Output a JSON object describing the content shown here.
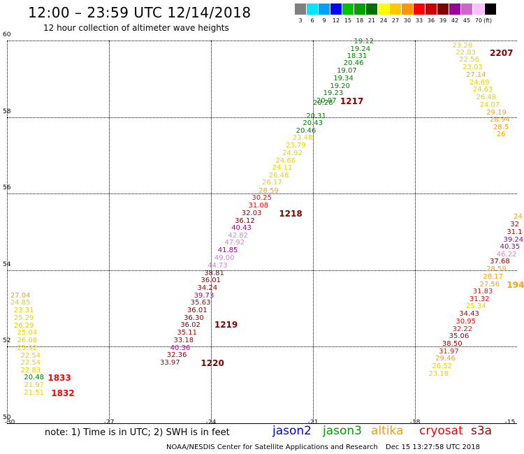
{
  "header": {
    "title": "12:00 – 23:59 UTC 12/14/2018",
    "subtitle": "12 hour collection of altimeter wave heights"
  },
  "color_scale": {
    "unit": "(ft)",
    "bins": [
      {
        "label": "3",
        "color": "#808080"
      },
      {
        "label": "6",
        "color": "#00e5ff"
      },
      {
        "label": "9",
        "color": "#00a0ff"
      },
      {
        "label": "12",
        "color": "#0000ff"
      },
      {
        "label": "15",
        "color": "#00c000"
      },
      {
        "label": "18",
        "color": "#00a000"
      },
      {
        "label": "21",
        "color": "#007000"
      },
      {
        "label": "24",
        "color": "#ffff00"
      },
      {
        "label": "27",
        "color": "#ffc800"
      },
      {
        "label": "30",
        "color": "#ff9600"
      },
      {
        "label": "33",
        "color": "#ff0000"
      },
      {
        "label": "36",
        "color": "#c80000"
      },
      {
        "label": "39",
        "color": "#800000"
      },
      {
        "label": "42",
        "color": "#990099"
      },
      {
        "label": "45",
        "color": "#cc66cc"
      },
      {
        "label": "70",
        "color": "#ffc0ff"
      },
      {
        "label": "",
        "color": "#000000"
      }
    ]
  },
  "map": {
    "lon_ticks": [
      "-30",
      "-27",
      "-24",
      "-21",
      "-18",
      "-15"
    ],
    "lat_ticks": [
      "50",
      "52",
      "54",
      "56",
      "58",
      "60"
    ],
    "lon_range": [
      -30,
      -15
    ],
    "lat_range": [
      50,
      60
    ]
  },
  "colors": {
    "green": "#008000",
    "yellow": "#e6d200",
    "orange": "#ffa000",
    "red": "#ff0000",
    "darkred": "#990000",
    "maroon": "#800000",
    "purple": "#990099",
    "lavender": "#cc88cc",
    "time": "#800000",
    "time_red": "#ff0000"
  },
  "tracks": [
    {
      "name": "track-1217-1220",
      "points": [
        {
          "v": "19.12",
          "lon": -19.8,
          "lat": 59.96,
          "c": "green"
        },
        {
          "v": "19.24",
          "lon": -19.9,
          "lat": 59.77,
          "c": "green"
        },
        {
          "v": "18.31",
          "lon": -20.0,
          "lat": 59.58,
          "c": "green"
        },
        {
          "v": "20.46",
          "lon": -20.1,
          "lat": 59.39,
          "c": "green"
        },
        {
          "v": "19.07",
          "lon": -20.3,
          "lat": 59.19,
          "c": "green"
        },
        {
          "v": "19.34",
          "lon": -20.4,
          "lat": 58.99,
          "c": "green"
        },
        {
          "v": "19.20",
          "lon": -20.5,
          "lat": 58.8,
          "c": "green"
        },
        {
          "v": "19.23",
          "lon": -20.7,
          "lat": 58.61,
          "c": "green"
        },
        {
          "v": "20.07",
          "lon": -20.9,
          "lat": 58.41,
          "c": "green"
        },
        {
          "v": "20.28",
          "lon": -21.0,
          "lat": 58.35,
          "c": "green"
        },
        {
          "v": "20.31",
          "lon": -21.2,
          "lat": 58.02,
          "c": "green"
        },
        {
          "v": "20.43",
          "lon": -21.3,
          "lat": 57.83,
          "c": "green"
        },
        {
          "v": "20.46",
          "lon": -21.5,
          "lat": 57.63,
          "c": "green"
        },
        {
          "v": "23.48",
          "lon": -21.6,
          "lat": 57.44,
          "c": "yellow"
        },
        {
          "v": "23.79",
          "lon": -21.8,
          "lat": 57.24,
          "c": "yellow"
        },
        {
          "v": "24.92",
          "lon": -21.9,
          "lat": 57.05,
          "c": "yellow"
        },
        {
          "v": "24.66",
          "lon": -22.1,
          "lat": 56.85,
          "c": "yellow"
        },
        {
          "v": "24.11",
          "lon": -22.2,
          "lat": 56.66,
          "c": "yellow"
        },
        {
          "v": "26.48",
          "lon": -22.3,
          "lat": 56.46,
          "c": "yellow"
        },
        {
          "v": "26.17",
          "lon": -22.5,
          "lat": 56.27,
          "c": "yellow"
        },
        {
          "v": "28.59",
          "lon": -22.6,
          "lat": 56.06,
          "c": "orange"
        },
        {
          "v": "30.25",
          "lon": -22.8,
          "lat": 55.87,
          "c": "red"
        },
        {
          "v": "31.08",
          "lon": -22.9,
          "lat": 55.67,
          "c": "red"
        },
        {
          "v": "32.03",
          "lon": -23.1,
          "lat": 55.48,
          "c": "darkred"
        },
        {
          "v": "36.12",
          "lon": -23.3,
          "lat": 55.28,
          "c": "maroon"
        },
        {
          "v": "40.43",
          "lon": -23.4,
          "lat": 55.09,
          "c": "purple"
        },
        {
          "v": "42.82",
          "lon": -23.5,
          "lat": 54.89,
          "c": "lavender"
        },
        {
          "v": "47.92",
          "lon": -23.6,
          "lat": 54.7,
          "c": "lavender"
        },
        {
          "v": "41.85",
          "lon": -23.8,
          "lat": 54.5,
          "c": "purple"
        },
        {
          "v": "49.00",
          "lon": -23.9,
          "lat": 54.31,
          "c": "lavender"
        },
        {
          "v": "44.73",
          "lon": -24.1,
          "lat": 54.11,
          "c": "lavender"
        },
        {
          "v": "38.81",
          "lon": -24.2,
          "lat": 53.91,
          "c": "maroon"
        },
        {
          "v": "36.01",
          "lon": -24.3,
          "lat": 53.72,
          "c": "maroon"
        },
        {
          "v": "34.24",
          "lon": -24.4,
          "lat": 53.52,
          "c": "darkred"
        },
        {
          "v": "39.73",
          "lon": -24.5,
          "lat": 53.33,
          "c": "purple"
        },
        {
          "v": "35.63",
          "lon": -24.6,
          "lat": 53.13,
          "c": "darkred"
        },
        {
          "v": "36.01",
          "lon": -24.7,
          "lat": 52.94,
          "c": "maroon"
        },
        {
          "v": "36.30",
          "lon": -24.8,
          "lat": 52.74,
          "c": "maroon"
        },
        {
          "v": "36.02",
          "lon": -24.9,
          "lat": 52.55,
          "c": "maroon"
        },
        {
          "v": "35.11",
          "lon": -25.0,
          "lat": 52.35,
          "c": "darkred"
        },
        {
          "v": "33.18",
          "lon": -25.1,
          "lat": 52.16,
          "c": "darkred"
        },
        {
          "v": "40.36",
          "lon": -25.2,
          "lat": 51.96,
          "c": "purple"
        },
        {
          "v": "32.36",
          "lon": -25.3,
          "lat": 51.77,
          "c": "darkred"
        },
        {
          "v": "33.97",
          "lon": -25.5,
          "lat": 51.57,
          "c": "darkred"
        }
      ],
      "times": [
        {
          "t": "1217",
          "lon": -20.2,
          "lat": 58.42,
          "c": "time"
        },
        {
          "t": "1218",
          "lon": -22.0,
          "lat": 55.47,
          "c": "time"
        },
        {
          "t": "1219",
          "lon": -23.9,
          "lat": 52.58,
          "c": "time"
        },
        {
          "t": "1220",
          "lon": -24.3,
          "lat": 51.57,
          "c": "time"
        }
      ]
    },
    {
      "name": "track-2207",
      "points": [
        {
          "v": "23.28",
          "lon": -16.9,
          "lat": 59.86,
          "c": "yellow"
        },
        {
          "v": "22.83",
          "lon": -16.8,
          "lat": 59.67,
          "c": "yellow"
        },
        {
          "v": "22.56",
          "lon": -16.7,
          "lat": 59.48,
          "c": "yellow"
        },
        {
          "v": "23.03",
          "lon": -16.6,
          "lat": 59.28,
          "c": "yellow"
        },
        {
          "v": "27.14",
          "lon": -16.5,
          "lat": 59.08,
          "c": "orange"
        },
        {
          "v": "24.69",
          "lon": -16.4,
          "lat": 58.89,
          "c": "yellow"
        },
        {
          "v": "24.63",
          "lon": -16.3,
          "lat": 58.7,
          "c": "yellow"
        },
        {
          "v": "26.48",
          "lon": -16.2,
          "lat": 58.5,
          "c": "yellow"
        },
        {
          "v": "24.07",
          "lon": -16.1,
          "lat": 58.3,
          "c": "yellow"
        },
        {
          "v": "29.19",
          "lon": -15.9,
          "lat": 58.11,
          "c": "orange"
        },
        {
          "v": "28.94",
          "lon": -15.8,
          "lat": 57.92,
          "c": "orange"
        },
        {
          "v": "28.5",
          "lon": -15.7,
          "lat": 57.72,
          "c": "orange"
        },
        {
          "v": "26",
          "lon": -15.6,
          "lat": 57.53,
          "c": "orange"
        }
      ],
      "times": [
        {
          "t": "2207",
          "lon": -15.8,
          "lat": 59.67,
          "c": "time"
        }
      ]
    },
    {
      "name": "track-1940",
      "points": [
        {
          "v": "24",
          "lon": -15.1,
          "lat": 55.38,
          "c": "orange"
        },
        {
          "v": "32",
          "lon": -15.2,
          "lat": 55.18,
          "c": "darkred"
        },
        {
          "v": "31.1",
          "lon": -15.3,
          "lat": 54.99,
          "c": "darkred"
        },
        {
          "v": "39.24",
          "lon": -15.4,
          "lat": 54.79,
          "c": "purple"
        },
        {
          "v": "40.35",
          "lon": -15.5,
          "lat": 54.6,
          "c": "purple"
        },
        {
          "v": "46.22",
          "lon": -15.6,
          "lat": 54.4,
          "c": "lavender"
        },
        {
          "v": "37.68",
          "lon": -15.8,
          "lat": 54.21,
          "c": "maroon"
        },
        {
          "v": "28.59",
          "lon": -15.9,
          "lat": 54.01,
          "c": "orange"
        },
        {
          "v": "28.17",
          "lon": -16.0,
          "lat": 53.82,
          "c": "orange"
        },
        {
          "v": "27.56",
          "lon": -16.1,
          "lat": 53.62,
          "c": "orange"
        },
        {
          "v": "31.83",
          "lon": -16.3,
          "lat": 53.43,
          "c": "red"
        },
        {
          "v": "31.32",
          "lon": -16.4,
          "lat": 53.23,
          "c": "red"
        },
        {
          "v": "25.34",
          "lon": -16.5,
          "lat": 53.04,
          "c": "yellow"
        },
        {
          "v": "34.43",
          "lon": -16.7,
          "lat": 52.84,
          "c": "darkred"
        },
        {
          "v": "30.95",
          "lon": -16.8,
          "lat": 52.65,
          "c": "red"
        },
        {
          "v": "32.22",
          "lon": -16.9,
          "lat": 52.45,
          "c": "red"
        },
        {
          "v": "35.06",
          "lon": -17.0,
          "lat": 52.26,
          "c": "darkred"
        },
        {
          "v": "38.50",
          "lon": -17.2,
          "lat": 52.06,
          "c": "maroon"
        },
        {
          "v": "31.97",
          "lon": -17.3,
          "lat": 51.86,
          "c": "red"
        },
        {
          "v": "29.46",
          "lon": -17.4,
          "lat": 51.67,
          "c": "orange"
        },
        {
          "v": "26.52",
          "lon": -17.5,
          "lat": 51.47,
          "c": "yellow"
        },
        {
          "v": "23.18",
          "lon": -17.6,
          "lat": 51.28,
          "c": "yellow"
        }
      ],
      "times": [
        {
          "t": "194",
          "lon": -15.3,
          "lat": 53.61,
          "c": "orange"
        }
      ]
    },
    {
      "name": "track-1833",
      "points": [
        {
          "v": "27.04",
          "lon": -29.9,
          "lat": 53.32,
          "c": "orange"
        },
        {
          "v": "24.85",
          "lon": -29.9,
          "lat": 53.13,
          "c": "yellow"
        },
        {
          "v": "23.31",
          "lon": -29.8,
          "lat": 52.93,
          "c": "yellow"
        },
        {
          "v": "25.29",
          "lon": -29.8,
          "lat": 52.74,
          "c": "yellow"
        },
        {
          "v": "26.29",
          "lon": -29.8,
          "lat": 52.54,
          "c": "yellow"
        },
        {
          "v": "25.04",
          "lon": -29.7,
          "lat": 52.35,
          "c": "yellow"
        },
        {
          "v": "26.08",
          "lon": -29.7,
          "lat": 52.15,
          "c": "yellow"
        },
        {
          "v": "25.92",
          "lon": -29.7,
          "lat": 51.96,
          "c": "yellow"
        },
        {
          "v": "22.54",
          "lon": -29.6,
          "lat": 51.76,
          "c": "yellow"
        },
        {
          "v": "22.54",
          "lon": -29.6,
          "lat": 51.57,
          "c": "yellow"
        },
        {
          "v": "22.83",
          "lon": -29.6,
          "lat": 51.37,
          "c": "yellow"
        },
        {
          "v": "20.48",
          "lon": -29.5,
          "lat": 51.18,
          "c": "green"
        },
        {
          "v": "21.97",
          "lon": -29.5,
          "lat": 50.98,
          "c": "yellow"
        },
        {
          "v": "21.51",
          "lon": -29.5,
          "lat": 50.79,
          "c": "yellow"
        }
      ],
      "times": [
        {
          "t": "1833",
          "lon": -28.8,
          "lat": 51.18,
          "c": "time_red"
        },
        {
          "t": "1832",
          "lon": -28.7,
          "lat": 50.79,
          "c": "time_red"
        }
      ]
    }
  ],
  "footer": {
    "note": "note: 1) Time is in UTC; 2) SWH is in feet",
    "legend": [
      {
        "label": "jason2",
        "color": "#0000dd"
      },
      {
        "label": "jason3",
        "color": "#009900"
      },
      {
        "label": "altika",
        "color": "#ff9900"
      },
      {
        "label": "cryosat",
        "color": "#ee0000"
      },
      {
        "label": "s3a",
        "color": "#990000"
      }
    ],
    "credit": "NOAA/NESDIS Center for Satellite Applications and Research",
    "timestamp": "Dec 15 13:27:58 UTC 2018"
  }
}
